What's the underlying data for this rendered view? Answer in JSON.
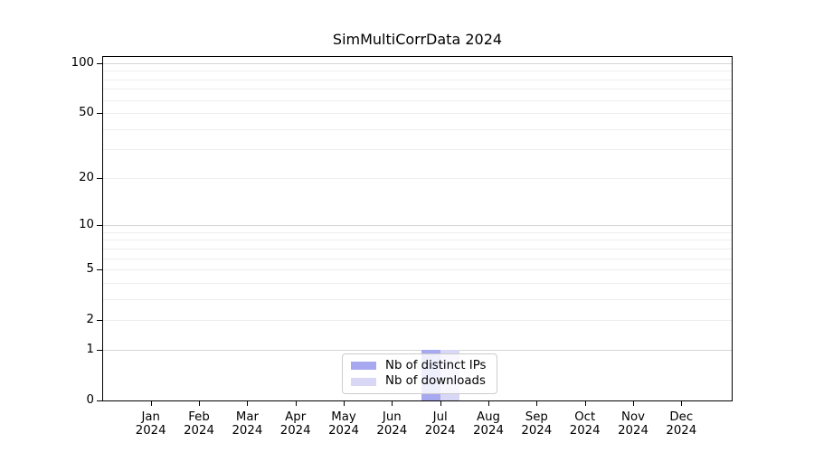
{
  "chart_data": {
    "type": "bar",
    "title": "SimMultiCorrData 2024",
    "x": {
      "categories": [
        "Jan",
        "Feb",
        "Mar",
        "Apr",
        "May",
        "Jun",
        "Jul",
        "Aug",
        "Sep",
        "Oct",
        "Nov",
        "Dec"
      ],
      "year_label": "2024"
    },
    "series": [
      {
        "name": "Nb of distinct IPs",
        "color": "#a8a8f0",
        "values": [
          0,
          0,
          0,
          0,
          0,
          0,
          1,
          0,
          0,
          0,
          0,
          0
        ]
      },
      {
        "name": "Nb of downloads",
        "color": "#d8d8f6",
        "values": [
          0,
          0,
          0,
          0,
          0,
          0,
          1,
          0,
          0,
          0,
          0,
          0
        ]
      }
    ],
    "y_axis": {
      "scale": "log1p",
      "ticks": [
        0,
        1,
        2,
        5,
        10,
        20,
        50,
        100
      ],
      "major_gridlines": [
        1,
        10,
        100
      ],
      "minor_gridlines": [
        2,
        3,
        4,
        5,
        6,
        7,
        8,
        9,
        20,
        30,
        40,
        50,
        60,
        70,
        80,
        90
      ],
      "range": [
        0,
        109
      ]
    },
    "legend": {
      "position": "lower center"
    },
    "colors": {
      "spine": "#000000",
      "major_grid": "#d5d5d5",
      "minor_grid": "#eeeeee",
      "legend_border": "#cccccc"
    },
    "grid": "on"
  }
}
